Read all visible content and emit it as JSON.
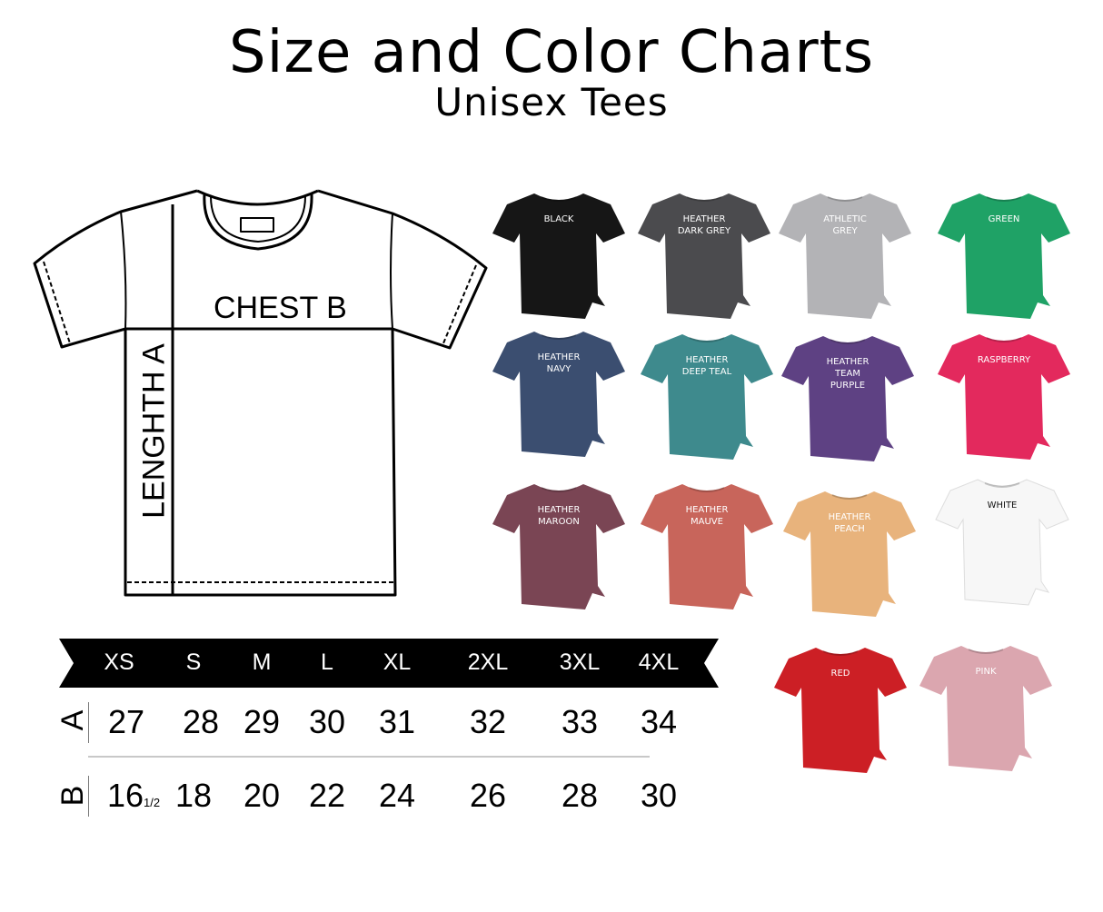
{
  "header": {
    "title": "Size and Color Charts",
    "subtitle": "Unisex Tees"
  },
  "diagram": {
    "chest_label": "CHEST B",
    "length_label": "LENGHTH A"
  },
  "size_table": {
    "sizes": [
      "XS",
      "S",
      "M",
      "L",
      "XL",
      "2XL",
      "3XL",
      "4XL"
    ],
    "rows": [
      {
        "label": "A",
        "values": [
          "27",
          "28",
          "29",
          "30",
          "31",
          "32",
          "33",
          "34"
        ]
      },
      {
        "label": "B",
        "values": [
          "16",
          "18",
          "20",
          "22",
          "24",
          "26",
          "28",
          "30"
        ],
        "xs_fraction": "1/2"
      }
    ]
  },
  "colors": [
    {
      "name": "BLACK",
      "hex": "#161616",
      "text": "#ffffff"
    },
    {
      "name": "HEATHER\nDARK GREY",
      "hex": "#4b4b4e",
      "text": "#ffffff"
    },
    {
      "name": "ATHLETIC\nGREY",
      "hex": "#b3b3b6",
      "text": "#ffffff"
    },
    {
      "name": "GREEN",
      "hex": "#1fa266",
      "text": "#ffffff"
    },
    {
      "name": "HEATHER\nNAVY",
      "hex": "#3b4e70",
      "text": "#ffffff"
    },
    {
      "name": "HEATHER\nDEEP TEAL",
      "hex": "#3e8a8d",
      "text": "#ffffff"
    },
    {
      "name": "HEATHER\nTEAM\nPURPLE",
      "hex": "#5e4183",
      "text": "#ffffff"
    },
    {
      "name": "RASPBERRY",
      "hex": "#e3295d",
      "text": "#ffffff"
    },
    {
      "name": "HEATHER\nMAROON",
      "hex": "#7a4554",
      "text": "#ffffff"
    },
    {
      "name": "HEATHER\nMAUVE",
      "hex": "#c8655b",
      "text": "#ffffff"
    },
    {
      "name": "HEATHER\nPEACH",
      "hex": "#e8b37c",
      "text": "#ffffff"
    },
    {
      "name": "WHITE",
      "hex": "#f7f7f7",
      "text": "#111111"
    },
    {
      "name": "RED",
      "hex": "#cc1f25",
      "text": "#ffffff"
    },
    {
      "name": "PINK",
      "hex": "#dba6af",
      "text": "#ffffff"
    }
  ]
}
